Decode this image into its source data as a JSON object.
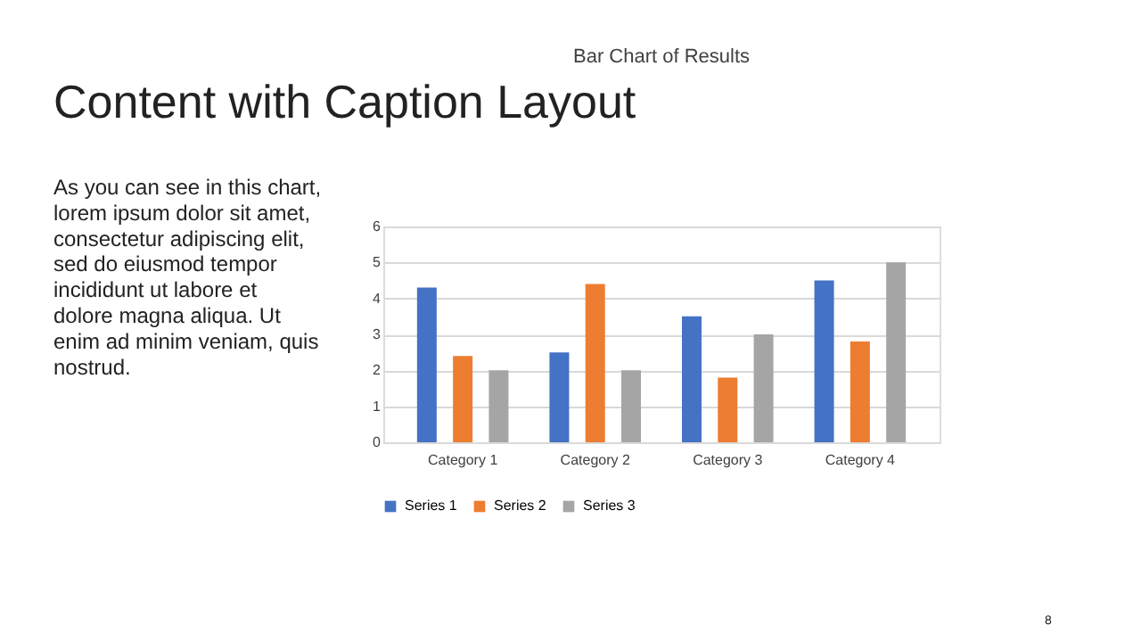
{
  "chart_data": {
    "type": "bar",
    "title": "Bar Chart of Results",
    "categories": [
      "Category 1",
      "Category 2",
      "Category 3",
      "Category 4"
    ],
    "series": [
      {
        "name": "Series 1",
        "color": "#4472c4",
        "values": [
          4.3,
          2.5,
          3.5,
          4.5
        ]
      },
      {
        "name": "Series 2",
        "color": "#ed7d31",
        "values": [
          2.4,
          4.4,
          1.8,
          2.8
        ]
      },
      {
        "name": "Series 3",
        "color": "#a5a5a5",
        "values": [
          2,
          2,
          3,
          5
        ]
      }
    ],
    "ylim": [
      0,
      6
    ],
    "yticks": [
      0,
      1,
      2,
      3,
      4,
      5,
      6
    ],
    "grid": "y",
    "legend": "bottom",
    "annotations": [
      "Content with Caption Layout",
      "As you can see in this chart,\nlorem ipsum dolor sit amet,\nconsectetur adipiscing elit,\nsed do eiusmod tempor\nincididunt ut labore et\ndolore magna aliqua. Ut\nenim ad minim veniam, quis\nnostrud.",
      "8"
    ]
  }
}
